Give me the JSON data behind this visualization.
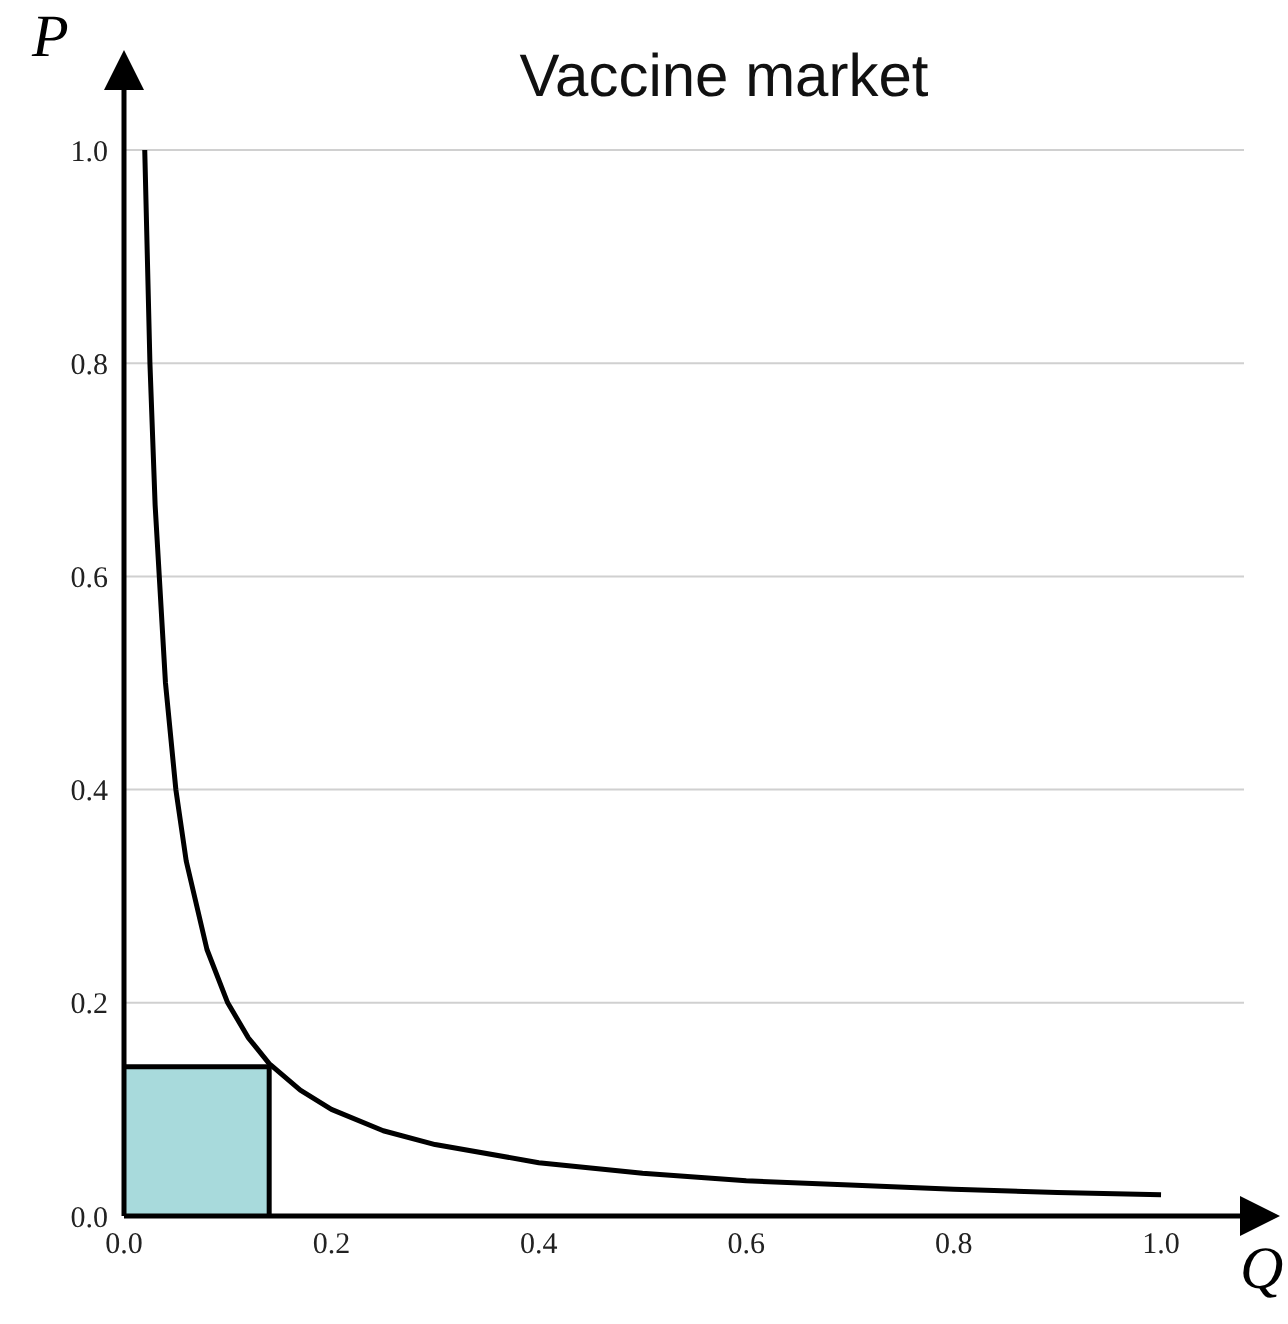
{
  "chart_data": {
    "type": "line",
    "title": "Vaccine market",
    "xlabel": "Q",
    "ylabel": "P",
    "xlim": [
      0,
      1.08
    ],
    "ylim": [
      0,
      1.06
    ],
    "xticks": [
      {
        "value": 0,
        "label": "0.0"
      },
      {
        "value": 0.2,
        "label": "0.2"
      },
      {
        "value": 0.4,
        "label": "0.4"
      },
      {
        "value": 0.6,
        "label": "0.6"
      },
      {
        "value": 0.8,
        "label": "0.8"
      },
      {
        "value": 1,
        "label": "1.0"
      }
    ],
    "yticks": [
      {
        "value": 0,
        "label": "0.0"
      },
      {
        "value": 0.2,
        "label": "0.2"
      },
      {
        "value": 0.4,
        "label": "0.4"
      },
      {
        "value": 0.6,
        "label": "0.6"
      },
      {
        "value": 0.8,
        "label": "0.8"
      },
      {
        "value": 1,
        "label": "1.0"
      }
    ],
    "grid": "y",
    "marker": "none",
    "line_style": "solid",
    "series": [
      {
        "type": "area",
        "color": "#a8dadc",
        "x": [
          0,
          0.14,
          0.14
        ],
        "values": [
          0.14,
          0.14,
          0
        ]
      },
      {
        "color": "#000000",
        "x": [
          0.02,
          0.025,
          0.03,
          0.04,
          0.05,
          0.06,
          0.08,
          0.1,
          0.12,
          0.14,
          0.17,
          0.2,
          0.25,
          0.3,
          0.4,
          0.5,
          0.6,
          0.7,
          0.8,
          0.9,
          1.0
        ],
        "values": [
          1,
          0.8,
          0.667,
          0.5,
          0.4,
          0.333,
          0.25,
          0.2,
          0.167,
          0.143,
          0.118,
          0.1,
          0.08,
          0.067,
          0.05,
          0.04,
          0.033,
          0.029,
          0.025,
          0.022,
          0.02
        ]
      }
    ]
  }
}
